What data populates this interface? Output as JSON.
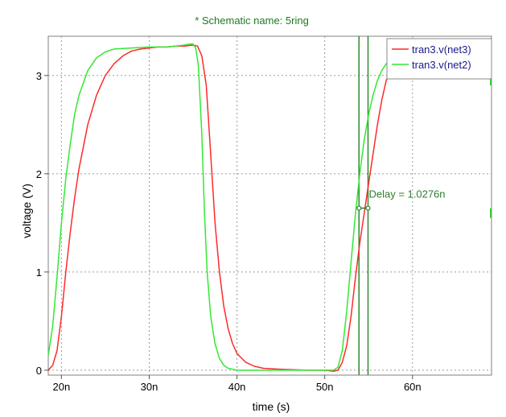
{
  "chart_data": {
    "type": "line",
    "title": "* Schematic name: 5ring",
    "xlabel": "time (s)",
    "ylabel": "voltage (V)",
    "xlim": [
      18.5,
      69
    ],
    "ylim": [
      -0.05,
      3.4
    ],
    "xticks": [
      {
        "v": 20,
        "label": "20n"
      },
      {
        "v": 30,
        "label": "30n"
      },
      {
        "v": 40,
        "label": "40n"
      },
      {
        "v": 50,
        "label": "50n"
      },
      {
        "v": 60,
        "label": "60n"
      }
    ],
    "yticks": [
      {
        "v": 0,
        "label": "0"
      },
      {
        "v": 1,
        "label": "1"
      },
      {
        "v": 2,
        "label": "2"
      },
      {
        "v": 3,
        "label": "3"
      }
    ],
    "grid": true,
    "legend_position": "top-right",
    "series": [
      {
        "name": "tran3.v(net3)",
        "color": "#ff2a2a",
        "points": [
          [
            18.5,
            0.0
          ],
          [
            19.0,
            0.05
          ],
          [
            19.5,
            0.2
          ],
          [
            20.0,
            0.55
          ],
          [
            20.5,
            1.0
          ],
          [
            21.0,
            1.4
          ],
          [
            21.5,
            1.75
          ],
          [
            22.0,
            2.05
          ],
          [
            23.0,
            2.5
          ],
          [
            24.0,
            2.8
          ],
          [
            25.0,
            3.0
          ],
          [
            26.0,
            3.12
          ],
          [
            27.0,
            3.2
          ],
          [
            28.0,
            3.25
          ],
          [
            29.0,
            3.27
          ],
          [
            30.0,
            3.28
          ],
          [
            31.0,
            3.29
          ],
          [
            32.0,
            3.29
          ],
          [
            33.0,
            3.3
          ],
          [
            34.0,
            3.3
          ],
          [
            35.0,
            3.31
          ],
          [
            35.5,
            3.3
          ],
          [
            36.0,
            3.2
          ],
          [
            36.5,
            2.9
          ],
          [
            37.0,
            2.2
          ],
          [
            37.5,
            1.5
          ],
          [
            38.0,
            1.0
          ],
          [
            38.5,
            0.65
          ],
          [
            39.0,
            0.42
          ],
          [
            39.5,
            0.27
          ],
          [
            40.0,
            0.17
          ],
          [
            41.0,
            0.08
          ],
          [
            42.0,
            0.04
          ],
          [
            43.0,
            0.02
          ],
          [
            45.0,
            0.01
          ],
          [
            48.0,
            0.0
          ],
          [
            50.0,
            0.0
          ],
          [
            51.0,
            -0.01
          ],
          [
            51.5,
            0.0
          ],
          [
            52.0,
            0.08
          ],
          [
            52.5,
            0.25
          ],
          [
            53.0,
            0.55
          ],
          [
            53.5,
            0.95
          ],
          [
            54.0,
            1.3
          ],
          [
            54.5,
            1.6
          ],
          [
            55.0,
            1.9
          ],
          [
            55.5,
            2.2
          ],
          [
            56.0,
            2.5
          ],
          [
            56.5,
            2.75
          ],
          [
            57.0,
            2.95
          ],
          [
            57.5,
            3.05
          ],
          [
            58.0,
            3.12
          ],
          [
            58.3,
            3.15
          ]
        ]
      },
      {
        "name": "tran3.v(net2)",
        "color": "#33e833",
        "points": [
          [
            18.5,
            0.15
          ],
          [
            19.0,
            0.45
          ],
          [
            19.5,
            0.95
          ],
          [
            20.0,
            1.5
          ],
          [
            20.5,
            1.95
          ],
          [
            21.0,
            2.3
          ],
          [
            21.5,
            2.6
          ],
          [
            22.0,
            2.8
          ],
          [
            23.0,
            3.05
          ],
          [
            24.0,
            3.18
          ],
          [
            25.0,
            3.24
          ],
          [
            26.0,
            3.27
          ],
          [
            28.0,
            3.28
          ],
          [
            30.0,
            3.29
          ],
          [
            32.0,
            3.29
          ],
          [
            33.0,
            3.3
          ],
          [
            34.0,
            3.31
          ],
          [
            34.5,
            3.32
          ],
          [
            35.0,
            3.32
          ],
          [
            35.3,
            3.28
          ],
          [
            35.6,
            3.1
          ],
          [
            36.0,
            2.4
          ],
          [
            36.3,
            1.6
          ],
          [
            36.6,
            1.0
          ],
          [
            37.0,
            0.55
          ],
          [
            37.5,
            0.27
          ],
          [
            38.0,
            0.12
          ],
          [
            38.5,
            0.05
          ],
          [
            39.0,
            0.02
          ],
          [
            40.0,
            0.0
          ],
          [
            45.0,
            0.0
          ],
          [
            50.0,
            0.0
          ],
          [
            51.0,
            0.0
          ],
          [
            51.5,
            0.03
          ],
          [
            52.0,
            0.2
          ],
          [
            52.5,
            0.6
          ],
          [
            53.0,
            1.1
          ],
          [
            53.5,
            1.6
          ],
          [
            54.0,
            2.0
          ],
          [
            54.5,
            2.35
          ],
          [
            55.0,
            2.6
          ],
          [
            55.5,
            2.8
          ],
          [
            56.0,
            2.95
          ],
          [
            56.5,
            3.05
          ],
          [
            57.0,
            3.12
          ],
          [
            57.5,
            3.15
          ]
        ]
      }
    ],
    "cursors": [
      {
        "x": 53.9,
        "color": "#2e8b2e"
      },
      {
        "x": 54.93,
        "color": "#2e8b2e"
      }
    ],
    "annotation": {
      "text": "Delay = 1.0276n",
      "x1": 53.9,
      "x2": 54.93,
      "y": 1.65,
      "color": "#2e7d2e"
    },
    "right_edge_marks": [
      {
        "y": 2.95
      },
      {
        "y": 1.6
      }
    ]
  }
}
